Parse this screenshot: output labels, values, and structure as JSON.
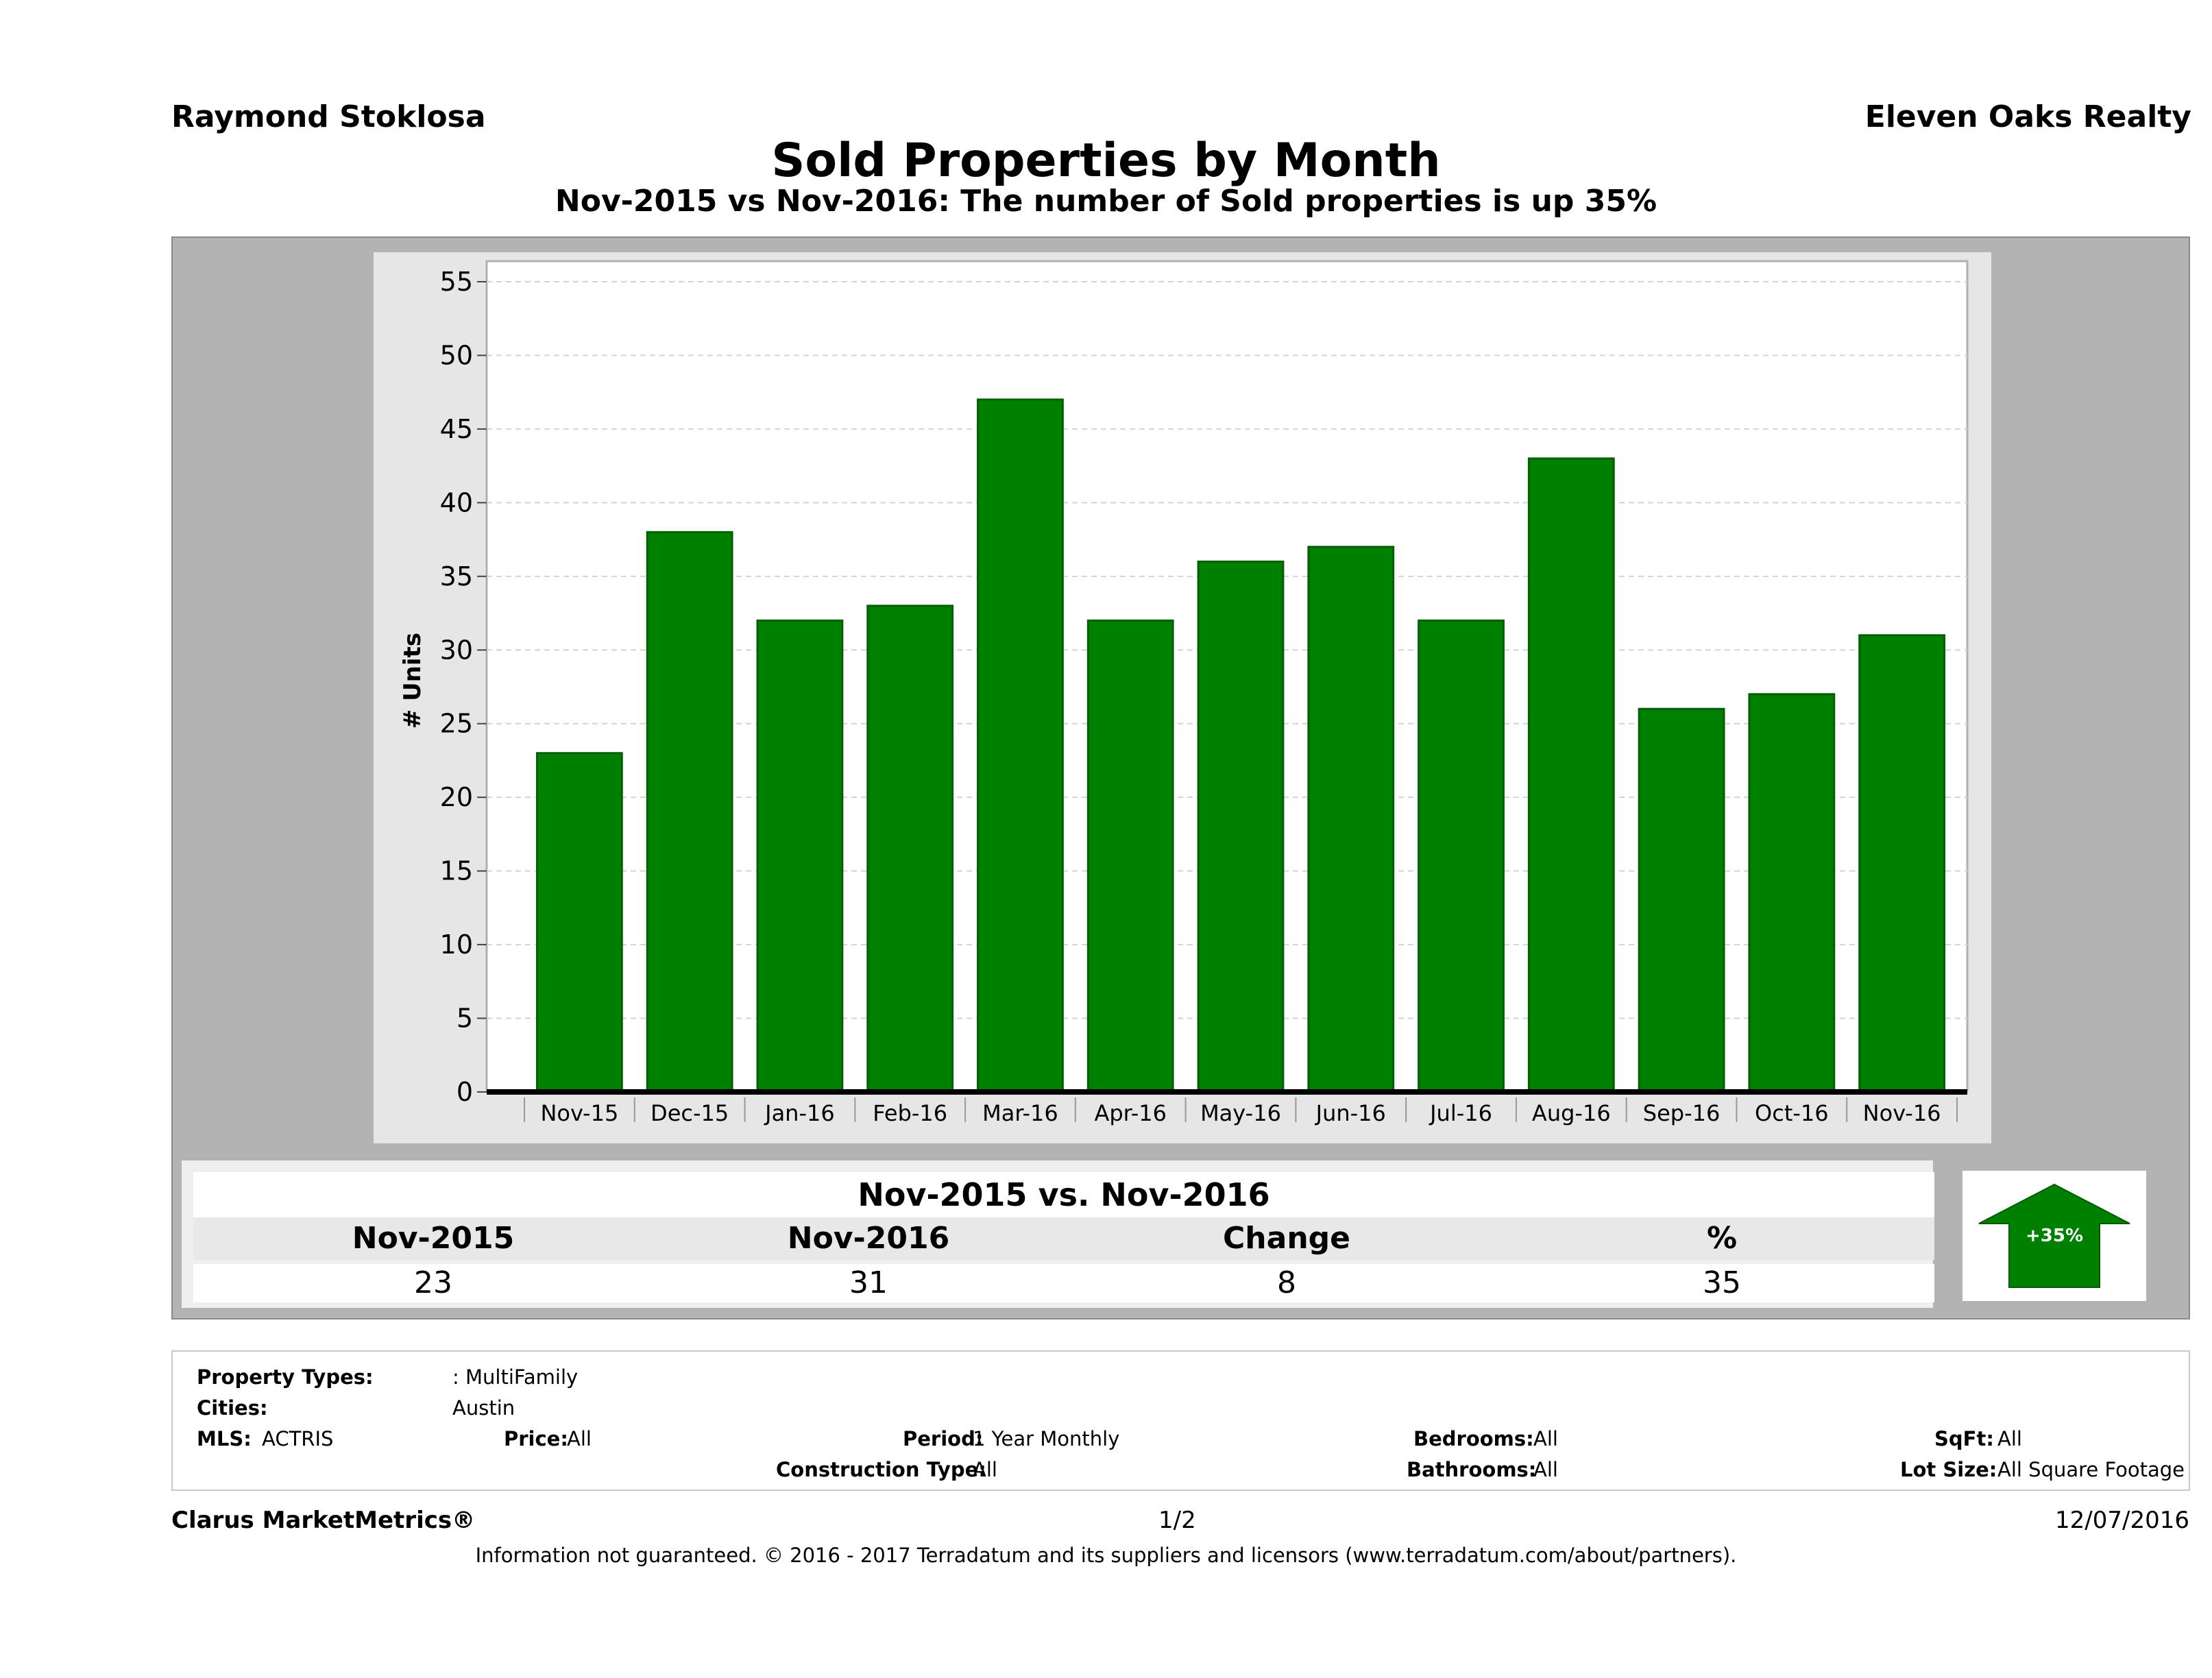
{
  "header": {
    "agent": "Raymond Stoklosa",
    "company": "Eleven Oaks Realty",
    "title": "Sold Properties by Month",
    "subtitle": "Nov-2015 vs Nov-2016: The number of Sold  properties is up 35%"
  },
  "chart_data": {
    "type": "bar",
    "categories": [
      "Nov-15",
      "Dec-15",
      "Jan-16",
      "Feb-16",
      "Mar-16",
      "Apr-16",
      "May-16",
      "Jun-16",
      "Jul-16",
      "Aug-16",
      "Sep-16",
      "Oct-16",
      "Nov-16"
    ],
    "values": [
      23,
      38,
      32,
      33,
      47,
      32,
      36,
      37,
      32,
      43,
      26,
      27,
      31
    ],
    "ylabel": "# Units",
    "ylim": [
      0,
      55
    ],
    "yticks": [
      0,
      5,
      10,
      15,
      20,
      25,
      30,
      35,
      40,
      45,
      50,
      55
    ],
    "bar_color": "#008000",
    "grid": true
  },
  "comparison": {
    "heading": "Nov-2015 vs. Nov-2016",
    "columns": [
      "Nov-2015",
      "Nov-2016",
      "Change",
      "%"
    ],
    "values": [
      "23",
      "31",
      "8",
      "35"
    ],
    "badge": "+35%",
    "badge_color": "#008000"
  },
  "filters": {
    "property_types_label": "Property Types:",
    "property_types_value": ": MultiFamily",
    "cities_label": "Cities:",
    "cities_value": "Austin",
    "mls_label": "MLS:",
    "mls_value": "ACTRIS",
    "price_label": "Price:",
    "price_value": "All",
    "period_label": "Period:",
    "period_value": "1 Year Monthly",
    "construction_label": "Construction Type:",
    "construction_value": "All",
    "bedrooms_label": "Bedrooms:",
    "bedrooms_value": "All",
    "bathrooms_label": "Bathrooms:",
    "bathrooms_value": "All",
    "sqft_label": "SqFt:",
    "sqft_value": "All",
    "lot_label": "Lot Size:",
    "lot_value": "All Square Footage"
  },
  "footer": {
    "brand": "Clarus MarketMetrics®",
    "page": "1/2",
    "date": "12/07/2016",
    "disclaimer": "Information not guaranteed. © 2016 - 2017 Terradatum and its suppliers and licensors (www.terradatum.com/about/partners)."
  }
}
